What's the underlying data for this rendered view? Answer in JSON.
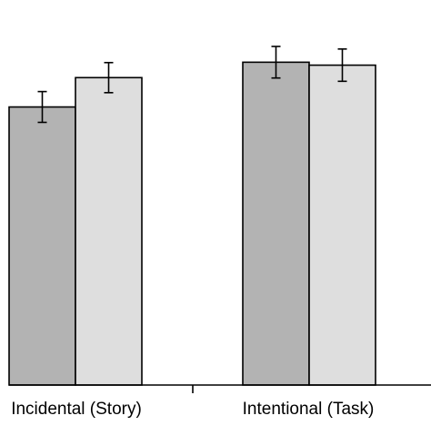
{
  "chart_data": {
    "type": "bar",
    "categories": [
      "Incidental (Story)",
      "Intentional (Task)"
    ],
    "series": [
      {
        "values": [
          0.758,
          0.88
        ],
        "errors": [
          0.042,
          0.043
        ],
        "color": "#b3b3b3"
      },
      {
        "values": [
          0.838,
          0.872
        ],
        "errors": [
          0.041,
          0.044
        ],
        "color": "#dedede"
      }
    ],
    "ylim": [
      0,
      1
    ],
    "grid": false,
    "legend": "none",
    "axis_color": "#000000",
    "bar_edge_color": "#000000"
  }
}
